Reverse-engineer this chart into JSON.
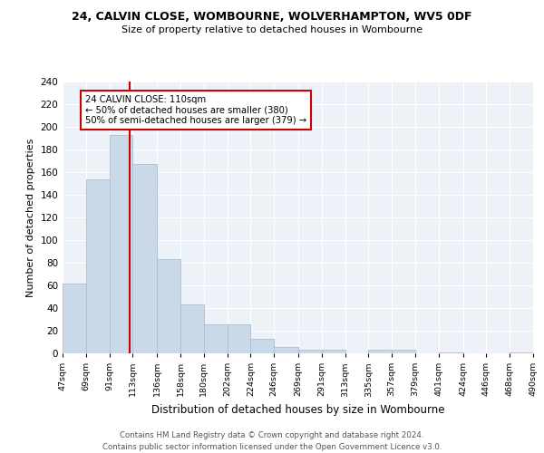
{
  "title1": "24, CALVIN CLOSE, WOMBOURNE, WOLVERHAMPTON, WV5 0DF",
  "title2": "Size of property relative to detached houses in Wombourne",
  "xlabel": "Distribution of detached houses by size in Wombourne",
  "ylabel": "Number of detached properties",
  "bar_edges": [
    47,
    69,
    91,
    113,
    136,
    158,
    180,
    202,
    224,
    246,
    269,
    291,
    313,
    335,
    357,
    379,
    401,
    424,
    446,
    468,
    490
  ],
  "bar_heights": [
    62,
    154,
    193,
    167,
    83,
    43,
    26,
    26,
    13,
    6,
    3,
    3,
    0,
    3,
    3,
    0,
    1,
    0,
    0,
    1
  ],
  "tick_labels": [
    "47sqm",
    "69sqm",
    "91sqm",
    "113sqm",
    "136sqm",
    "158sqm",
    "180sqm",
    "202sqm",
    "224sqm",
    "246sqm",
    "269sqm",
    "291sqm",
    "313sqm",
    "335sqm",
    "357sqm",
    "379sqm",
    "401sqm",
    "424sqm",
    "446sqm",
    "468sqm",
    "490sqm"
  ],
  "annotation_title": "24 CALVIN CLOSE: 110sqm",
  "annotation_line1": "← 50% of detached houses are smaller (380)",
  "annotation_line2": "50% of semi-detached houses are larger (379) →",
  "vline_x": 110,
  "bar_color": "#c9d9e8",
  "bar_edge_color": "#a8bfd4",
  "vline_color": "#cc0000",
  "annotation_box_color": "#cc0000",
  "background_color": "#edf2f9",
  "footer1": "Contains HM Land Registry data © Crown copyright and database right 2024.",
  "footer2": "Contains public sector information licensed under the Open Government Licence v3.0.",
  "ylim": [
    0,
    240
  ],
  "yticks": [
    0,
    20,
    40,
    60,
    80,
    100,
    120,
    140,
    160,
    180,
    200,
    220,
    240
  ]
}
